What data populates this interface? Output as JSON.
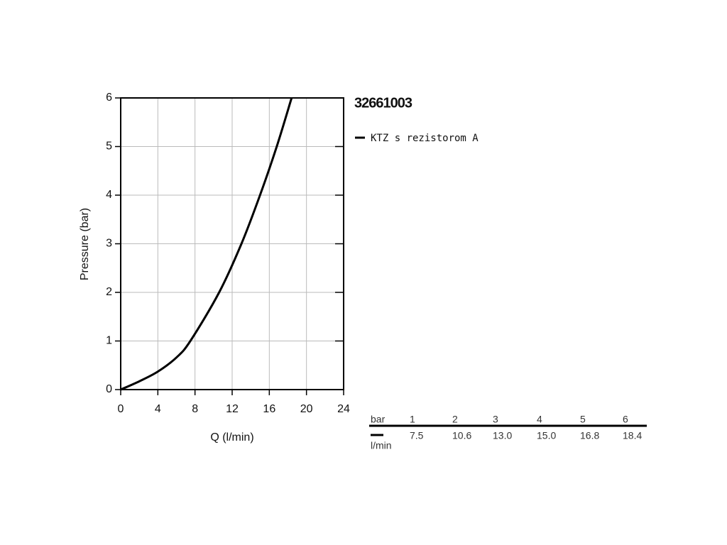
{
  "chart_data": {
    "type": "line",
    "series_title": "32661003",
    "xlabel": "Q (l/min)",
    "ylabel": "Pressure (bar)",
    "x": [
      0,
      2,
      4,
      6,
      7.5,
      10.6,
      13.0,
      15.0,
      16.8,
      18.4
    ],
    "series": [
      {
        "name": "KTZ s rezistorom A",
        "color": "#000000",
        "values": [
          0,
          0.17,
          0.37,
          0.66,
          1,
          2,
          3,
          4,
          5,
          6
        ]
      }
    ],
    "xlim": [
      0,
      24
    ],
    "xticks": [
      0,
      4,
      8,
      12,
      16,
      20,
      24
    ],
    "ylim": [
      0,
      6
    ],
    "yticks": [
      0,
      1,
      2,
      3,
      4,
      5,
      6
    ],
    "grid": true,
    "table": {
      "header": [
        "bar",
        "1",
        "2",
        "3",
        "4",
        "5",
        "6"
      ],
      "row_label": "l/min",
      "row": [
        "7.5",
        "10.6",
        "13.0",
        "15.0",
        "16.8",
        "18.4"
      ]
    }
  }
}
